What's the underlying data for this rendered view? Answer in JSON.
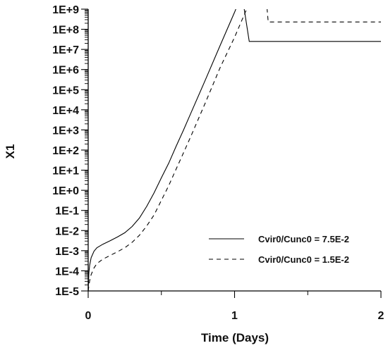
{
  "chart_data": {
    "type": "line",
    "xlabel": "Time (Days)",
    "ylabel": "X1",
    "xlim": [
      0,
      2
    ],
    "ylim_log10": [
      -5,
      9
    ],
    "yscale": "log",
    "x_ticks": [
      0,
      1,
      2
    ],
    "x_tick_labels": [
      "0",
      "1",
      "2"
    ],
    "y_ticks_log10": [
      -5,
      -4,
      -3,
      -2,
      -1,
      0,
      1,
      2,
      3,
      4,
      5,
      6,
      7,
      8,
      9
    ],
    "y_tick_labels": [
      "1E-5",
      "1E-4",
      "1E-3",
      "1E-2",
      "1E-1",
      "1E+0",
      "1E+1",
      "1E+2",
      "1E+3",
      "1E+4",
      "1E+5",
      "1E+6",
      "1E+7",
      "1E+8",
      "1E+9"
    ],
    "grid": false,
    "legend_position": "bottom-right",
    "series": [
      {
        "name": "Cvir0/Cunc0 = 7.5E-2",
        "style": "solid",
        "x": [
          0,
          0.005,
          0.01,
          0.02,
          0.04,
          0.06,
          0.1,
          0.15,
          0.2,
          0.25,
          0.3,
          0.35,
          0.4,
          0.45,
          0.5,
          0.55,
          0.6,
          0.65,
          0.7,
          0.8,
          0.9,
          1.0,
          1.05,
          1.1,
          1.25,
          1.5,
          1.75,
          2.0
        ],
        "y": [
          1e-05,
          8e-05,
          0.00019,
          0.00045,
          0.00095,
          0.0014,
          0.0021,
          0.0031,
          0.0048,
          0.0078,
          0.016,
          0.042,
          0.16,
          0.75,
          4.2,
          22,
          150,
          950,
          6500,
          300000.0,
          15000000.0,
          700000000.0,
          5500000000.0,
          25000000.0,
          25000000.0,
          25000000.0,
          25000000.0,
          25000000.0
        ]
      },
      {
        "name": "Cvir0/Cunc0 = 1.5E-2",
        "style": "dashed",
        "x": [
          0,
          0.005,
          0.01,
          0.02,
          0.04,
          0.06,
          0.1,
          0.15,
          0.2,
          0.25,
          0.3,
          0.35,
          0.4,
          0.45,
          0.5,
          0.55,
          0.6,
          0.65,
          0.7,
          0.8,
          0.9,
          1.0,
          1.1,
          1.2,
          1.23,
          1.25,
          1.5,
          1.75,
          2.0
        ],
        "y": [
          1e-05,
          1.8e-05,
          3.2e-05,
          6.5e-05,
          0.00014,
          0.00023,
          0.00038,
          0.00058,
          0.00088,
          0.0014,
          0.0026,
          0.0058,
          0.017,
          0.06,
          0.32,
          1.7,
          11,
          70,
          460,
          22000.0,
          1200000.0,
          40000000.0,
          2000000000.0,
          80000000000.0,
          230000000.0,
          230000000.0,
          230000000.0,
          230000000.0,
          230000000.0
        ]
      }
    ]
  }
}
